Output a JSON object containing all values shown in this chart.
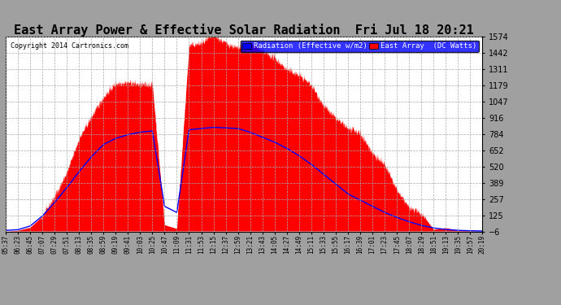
{
  "title": "East Array Power & Effective Solar Radiation  Fri Jul 18 20:21",
  "copyright": "Copyright 2014 Cartronics.com",
  "yticks": [
    1574.2,
    1442.4,
    1310.7,
    1179.0,
    1047.3,
    915.6,
    783.9,
    652.1,
    520.4,
    388.7,
    257.0,
    125.3,
    -6.5
  ],
  "ymin": -6.5,
  "ymax": 1574.2,
  "outer_bg_color": "#a0a0a0",
  "plot_bg_color": "#ffffff",
  "red_color": "#ff0000",
  "blue_color": "#0000ff",
  "legend_radiation_label": "Radiation (Effective w/m2)",
  "legend_east_label": "East Array  (DC Watts)",
  "title_fontsize": 11,
  "grid_color": "#aaaaaa",
  "xtick_labels": [
    "05:37",
    "06:23",
    "06:45",
    "07:07",
    "07:29",
    "07:51",
    "08:13",
    "08:35",
    "08:59",
    "09:19",
    "09:41",
    "10:03",
    "10:25",
    "10:47",
    "11:09",
    "11:31",
    "11:53",
    "12:15",
    "12:37",
    "12:59",
    "13:21",
    "13:43",
    "14:05",
    "14:27",
    "14:49",
    "15:11",
    "15:33",
    "15:55",
    "16:17",
    "16:39",
    "17:01",
    "17:23",
    "17:45",
    "18:07",
    "18:29",
    "18:51",
    "19:13",
    "19:35",
    "19:57",
    "20:19"
  ]
}
